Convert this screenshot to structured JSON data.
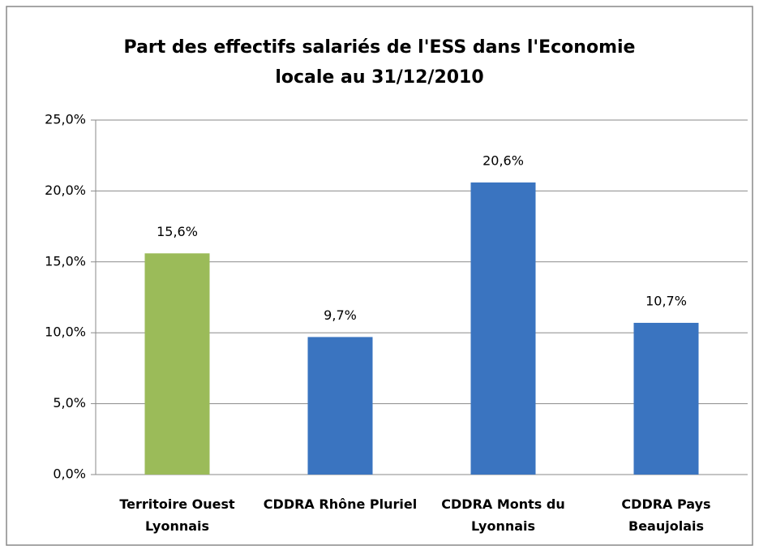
{
  "chart_data": {
    "type": "bar",
    "title": "Part des effectifs salariés de l'ESS dans l'Economie locale au 31/12/2010",
    "categories": [
      "Territoire Ouest Lyonnais",
      "CDDRA Rhône Pluriel",
      "CDDRA Monts du Lyonnais",
      "CDDRA Pays Beaujolais"
    ],
    "values": [
      15.6,
      9.7,
      20.6,
      10.7
    ],
    "value_labels": [
      "15,6%",
      "9,7%",
      "20,6%",
      "10,7%"
    ],
    "colors": [
      "#9bbb59",
      "#3a74c0",
      "#3a74c0",
      "#3a74c0"
    ],
    "ylim": [
      0,
      25
    ],
    "yticks": [
      {
        "value": 0,
        "label": "0,0%"
      },
      {
        "value": 5,
        "label": "5,0%"
      },
      {
        "value": 10,
        "label": "10,0%"
      },
      {
        "value": 15,
        "label": "15,0%"
      },
      {
        "value": 20,
        "label": "20,0%"
      },
      {
        "value": 25,
        "label": "25,0%"
      }
    ],
    "grid": true
  }
}
